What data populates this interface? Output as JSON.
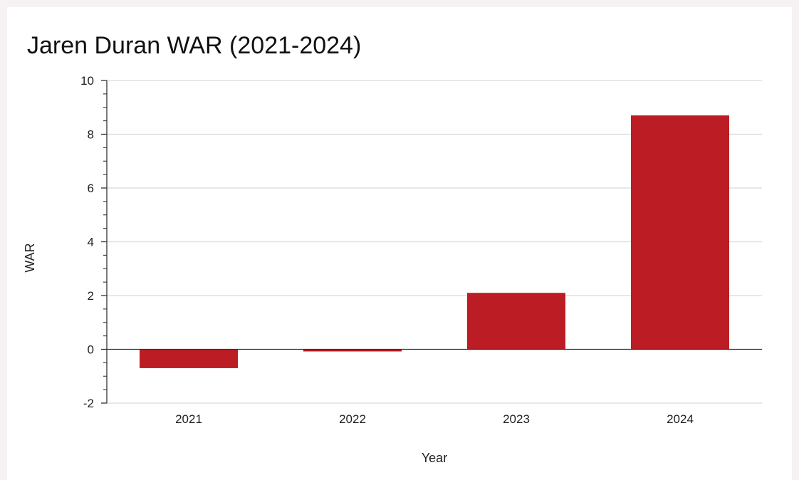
{
  "chart_data": {
    "type": "bar",
    "title": "Jaren Duran WAR (2021-2024)",
    "xlabel": "Year",
    "ylabel": "WAR",
    "categories": [
      "2021",
      "2022",
      "2023",
      "2024"
    ],
    "values": [
      -0.7,
      -0.05,
      2.1,
      8.7
    ],
    "ylim": [
      -2,
      10
    ],
    "yticks": [
      "-2",
      "0",
      "2",
      "4",
      "6",
      "8",
      "10"
    ],
    "grid": true,
    "legend": "none",
    "bar_color": "#bc1c23",
    "gridline_color": "#d9d9d9"
  }
}
